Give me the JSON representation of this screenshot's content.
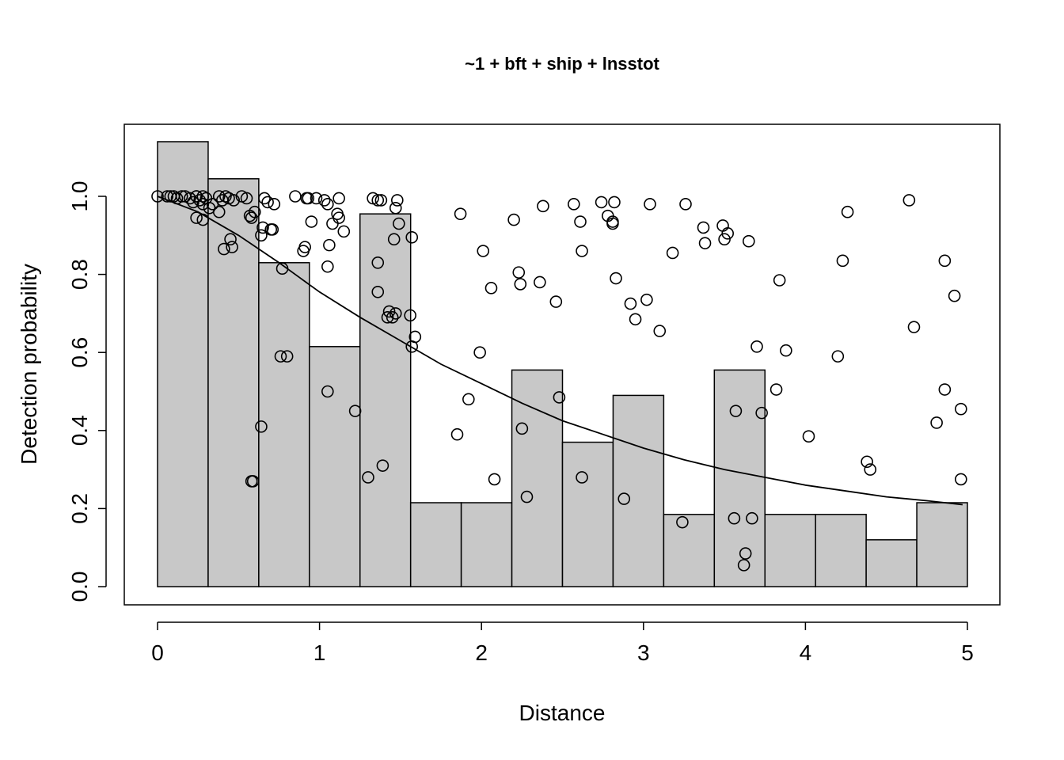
{
  "chart_data": {
    "type": "bar",
    "title": "~1 + bft + ship + lnsstot",
    "xlabel": "Distance",
    "ylabel": "Detection probability",
    "xlim": [
      0,
      5
    ],
    "ylim": [
      0,
      1.1
    ],
    "xticks": [
      0,
      1,
      2,
      3,
      4,
      5
    ],
    "xtick_labels": [
      "0",
      "1",
      "2",
      "3",
      "4",
      "5"
    ],
    "yticks": [
      0,
      0.2,
      0.4,
      0.6,
      0.8,
      1.0
    ],
    "ytick_labels": [
      "0.0",
      "0.2",
      "0.4",
      "0.6",
      "0.8",
      "1.0"
    ],
    "grid": false,
    "legend": "none",
    "colors": {
      "bar_fill": "#c8c8c8",
      "stroke": "#000000"
    },
    "histogram": {
      "bin_edges": [
        0,
        0.3125,
        0.625,
        0.9375,
        1.25,
        1.5625,
        1.875,
        2.1875,
        2.5,
        2.8125,
        3.125,
        3.4375,
        3.75,
        4.0625,
        4.375,
        4.6875,
        5
      ],
      "values": [
        1.14,
        1.045,
        0.83,
        0.615,
        0.955,
        0.215,
        0.215,
        0.555,
        0.37,
        0.49,
        0.185,
        0.555,
        0.185,
        0.185,
        0.12,
        0.215
      ]
    },
    "fitted_curve": {
      "x": [
        0,
        0.25,
        0.5,
        0.75,
        1.0,
        1.25,
        1.5,
        1.75,
        2.0,
        2.25,
        2.5,
        2.75,
        3.0,
        3.25,
        3.5,
        3.75,
        4.0,
        4.25,
        4.5,
        4.75,
        4.97
      ],
      "y": [
        1.0,
        0.96,
        0.9,
        0.83,
        0.755,
        0.69,
        0.63,
        0.57,
        0.52,
        0.47,
        0.425,
        0.39,
        0.355,
        0.325,
        0.3,
        0.28,
        0.26,
        0.245,
        0.23,
        0.22,
        0.21
      ]
    },
    "points": {
      "x": [
        0.0,
        0.06,
        0.08,
        0.1,
        0.12,
        0.15,
        0.17,
        0.2,
        0.22,
        0.24,
        0.24,
        0.26,
        0.28,
        0.28,
        0.3,
        0.32,
        0.34,
        0.38,
        0.4,
        0.42,
        0.44,
        0.47,
        0.52,
        0.55,
        0.57,
        0.58,
        0.6,
        0.66,
        0.68,
        0.7,
        0.72,
        0.24,
        0.28,
        0.38,
        0.41,
        0.45,
        0.46,
        0.59,
        0.64,
        0.65,
        0.71,
        0.77,
        0.76,
        0.8,
        0.58,
        0.64,
        0.85,
        0.9,
        0.92,
        0.95,
        0.98,
        0.91,
        0.93,
        1.05,
        1.08,
        1.12,
        1.11,
        1.05,
        1.06,
        1.12,
        1.15,
        1.05,
        1.03,
        1.22,
        1.3,
        1.33,
        1.36,
        1.38,
        1.48,
        1.47,
        1.49,
        1.57,
        1.46,
        1.36,
        1.36,
        1.43,
        1.42,
        1.45,
        1.47,
        1.56,
        1.59,
        1.57,
        1.39,
        1.87,
        2.01,
        2.06,
        2.2,
        2.23,
        2.24,
        2.36,
        2.38,
        2.46,
        2.57,
        2.61,
        2.62,
        2.74,
        2.78,
        2.81,
        2.82,
        2.81,
        2.83,
        2.92,
        2.95,
        3.02,
        3.04,
        3.1,
        3.18,
        3.26,
        3.37,
        3.38,
        3.49,
        3.5,
        3.52,
        3.65,
        3.7,
        3.84,
        3.88,
        3.82,
        3.73,
        1.85,
        1.92,
        1.99,
        2.08,
        2.25,
        2.28,
        2.48,
        2.62,
        2.88,
        3.24,
        3.57,
        3.56,
        3.63,
        3.62,
        3.67,
        4.02,
        4.2,
        4.23,
        4.26,
        4.38,
        4.4,
        4.64,
        4.67,
        4.81,
        4.86,
        4.86,
        4.92,
        4.96,
        4.96
      ],
      "y": [
        1.0,
        1.0,
        1.0,
        1.0,
        0.995,
        1.0,
        1.0,
        0.995,
        0.985,
        1.0,
        1.0,
        0.99,
        1.0,
        0.98,
        0.995,
        0.97,
        0.98,
        1.0,
        0.99,
        1.0,
        0.995,
        0.99,
        1.0,
        0.995,
        0.95,
        0.945,
        0.96,
        0.995,
        0.985,
        0.915,
        0.98,
        0.945,
        0.94,
        0.96,
        0.865,
        0.89,
        0.87,
        0.27,
        0.9,
        0.92,
        0.915,
        0.815,
        0.59,
        0.59,
        0.27,
        0.41,
        1.0,
        0.86,
        0.995,
        0.935,
        0.995,
        0.87,
        0.995,
        0.98,
        0.93,
        0.995,
        0.955,
        0.82,
        0.875,
        0.945,
        0.91,
        0.5,
        0.99,
        0.45,
        0.28,
        0.995,
        0.99,
        0.99,
        0.99,
        0.97,
        0.93,
        0.895,
        0.89,
        0.83,
        0.755,
        0.705,
        0.69,
        0.69,
        0.7,
        0.695,
        0.64,
        0.615,
        0.31,
        0.955,
        0.86,
        0.765,
        0.94,
        0.805,
        0.775,
        0.78,
        0.975,
        0.73,
        0.98,
        0.935,
        0.86,
        0.985,
        0.95,
        0.935,
        0.985,
        0.93,
        0.79,
        0.725,
        0.685,
        0.735,
        0.98,
        0.655,
        0.855,
        0.98,
        0.92,
        0.88,
        0.925,
        0.89,
        0.905,
        0.885,
        0.615,
        0.785,
        0.605,
        0.505,
        0.445,
        0.39,
        0.48,
        0.6,
        0.275,
        0.405,
        0.23,
        0.485,
        0.28,
        0.225,
        0.165,
        0.45,
        0.175,
        0.085,
        0.055,
        0.175,
        0.385,
        0.59,
        0.835,
        0.96,
        0.32,
        0.3,
        0.99,
        0.665,
        0.42,
        0.835,
        0.505,
        0.745,
        0.275,
        0.455
      ]
    }
  }
}
